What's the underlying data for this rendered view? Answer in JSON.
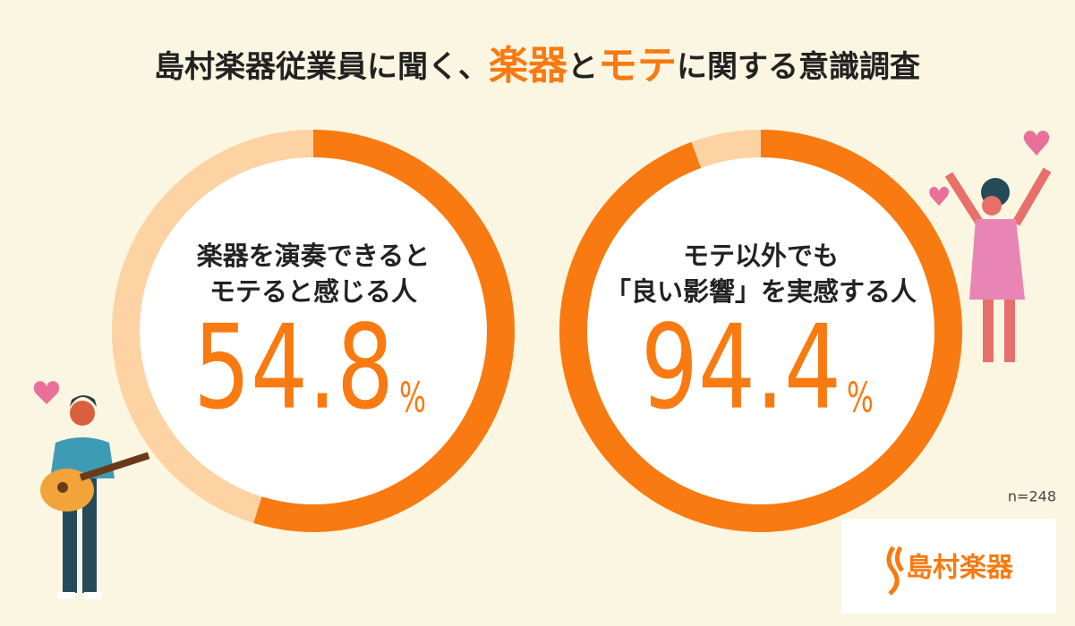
{
  "header": {
    "title_parts": [
      "島村楽器従業員に聞く、",
      "楽器",
      "と",
      "モテ",
      "に関する意識調査"
    ]
  },
  "chart_data": [
    {
      "type": "donut",
      "label": [
        "楽器を演奏できると",
        "モテると感じる人"
      ],
      "values": [
        54.8,
        45.2
      ],
      "colors": [
        "#f97a10",
        "#fdd3a4"
      ],
      "unit": "%"
    },
    {
      "type": "donut",
      "label": [
        "モテ以外でも",
        "「良い影響」を実感する人"
      ],
      "values": [
        94.4,
        5.6
      ],
      "colors": [
        "#f97a10",
        "#fdd3a4"
      ],
      "unit": "%"
    }
  ],
  "footer": {
    "sample": "n=248",
    "logo": "島村楽器"
  }
}
